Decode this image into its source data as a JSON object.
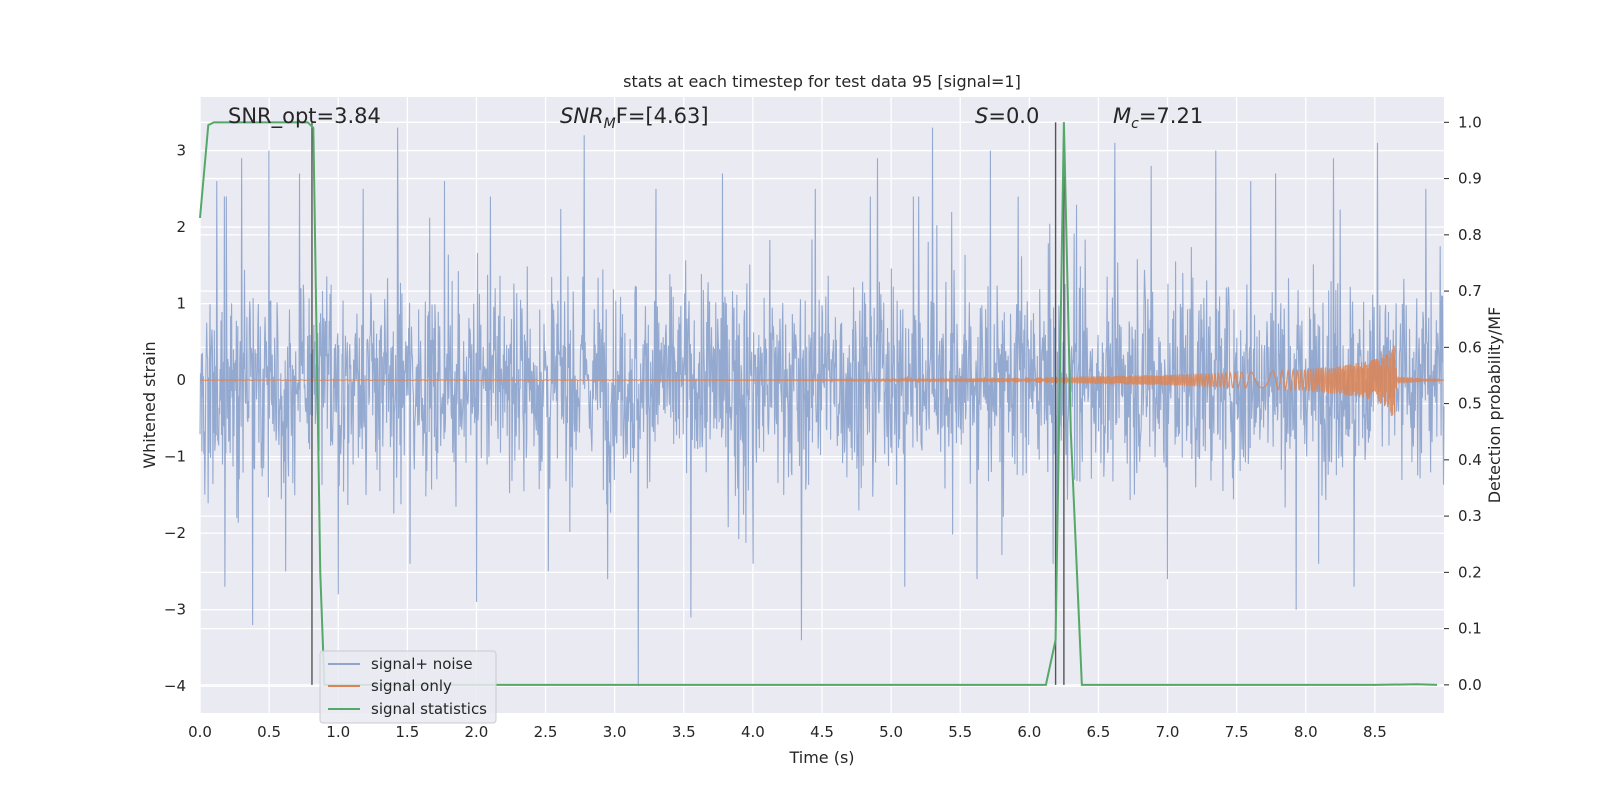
{
  "chart_data": {
    "type": "line",
    "title": "stats at each timestep for test data 95 [signal=1]",
    "xlabel": "Time (s)",
    "ylabel": "Whitened strain",
    "y2label": "Detection probability/MF",
    "xlim": [
      0.0,
      9.0
    ],
    "ylim": [
      -4.35,
      3.7
    ],
    "y2lim": [
      -0.05,
      1.045
    ],
    "x_ticks": [
      "0.0",
      "0.5",
      "1.0",
      "1.5",
      "2.0",
      "2.5",
      "3.0",
      "3.5",
      "4.0",
      "4.5",
      "5.0",
      "5.5",
      "6.0",
      "6.5",
      "7.0",
      "7.5",
      "8.0",
      "8.5"
    ],
    "y_ticks": [
      "3",
      "2",
      "1",
      "0",
      "−1",
      "−2",
      "−3",
      "−4"
    ],
    "y2_ticks": [
      "1.0",
      "0.9",
      "0.8",
      "0.7",
      "0.6",
      "0.5",
      "0.4",
      "0.3",
      "0.2",
      "0.1",
      "0.0"
    ],
    "grid": true,
    "legend_position": "lower-left",
    "annotations": [
      {
        "label": "SNR_opt=3.84"
      },
      {
        "prefix": "SNR",
        "sub": "M",
        "suffix": "F=[4.63]"
      },
      {
        "prefix": "S",
        "suffix": "=0.0"
      },
      {
        "prefix": "M",
        "sub": "c",
        "suffix": "=7.21"
      }
    ],
    "vertical_markers": [
      0.81,
      6.19,
      6.25
    ],
    "series": [
      {
        "name": "signal+ noise",
        "color": "#8fa5ce",
        "axis": "left",
        "style": "dense noise, approx. ±1.2 typical, peaks about ±3.3",
        "peaks": [
          [
            0.12,
            2.6
          ],
          [
            0.18,
            -2.7
          ],
          [
            0.3,
            2.9
          ],
          [
            0.38,
            -3.2
          ],
          [
            0.5,
            3.0
          ],
          [
            0.62,
            -2.5
          ],
          [
            0.72,
            2.7
          ],
          [
            1.0,
            -2.8
          ],
          [
            1.18,
            2.5
          ],
          [
            1.43,
            3.3
          ],
          [
            1.52,
            -2.4
          ],
          [
            1.77,
            2.6
          ],
          [
            2.0,
            -2.9
          ],
          [
            2.1,
            2.4
          ],
          [
            2.52,
            -2.5
          ],
          [
            2.78,
            3.2
          ],
          [
            2.95,
            -2.6
          ],
          [
            3.17,
            -4.0
          ],
          [
            3.3,
            2.5
          ],
          [
            3.55,
            -3.1
          ],
          [
            3.78,
            2.7
          ],
          [
            4.0,
            -2.4
          ],
          [
            4.35,
            -3.4
          ],
          [
            4.45,
            2.5
          ],
          [
            4.9,
            2.9
          ],
          [
            5.1,
            -2.7
          ],
          [
            5.2,
            2.4
          ],
          [
            5.3,
            3.3
          ],
          [
            5.62,
            -2.6
          ],
          [
            5.72,
            3.0
          ],
          [
            5.92,
            2.4
          ],
          [
            6.2,
            -2.5
          ],
          [
            6.62,
            3.1
          ],
          [
            6.88,
            2.8
          ],
          [
            7.0,
            -2.6
          ],
          [
            7.35,
            3.0
          ],
          [
            7.6,
            2.6
          ],
          [
            7.78,
            2.7
          ],
          [
            7.93,
            -3.0
          ],
          [
            8.2,
            2.9
          ],
          [
            8.35,
            -2.7
          ],
          [
            8.52,
            3.1
          ],
          [
            8.87,
            2.5
          ]
        ]
      },
      {
        "name": "signal only",
        "color": "#dd8452",
        "axis": "left",
        "style": "chirp: near zero, growing amplitude, merger near t=8.64",
        "envelope": [
          [
            0.0,
            0.003
          ],
          [
            4.0,
            0.005
          ],
          [
            5.0,
            0.01
          ],
          [
            6.0,
            0.035
          ],
          [
            7.0,
            0.07
          ],
          [
            7.5,
            0.1
          ],
          [
            8.0,
            0.14
          ],
          [
            8.3,
            0.2
          ],
          [
            8.5,
            0.27
          ],
          [
            8.6,
            0.38
          ],
          [
            8.64,
            0.5
          ],
          [
            8.66,
            0.05
          ],
          [
            9.0,
            0.0
          ]
        ]
      },
      {
        "name": "signal statistics",
        "color": "#55a868",
        "axis": "right",
        "x": [
          0.0,
          0.06,
          0.1,
          0.15,
          0.2,
          0.3,
          0.4,
          0.5,
          0.6,
          0.7,
          0.78,
          0.82,
          0.87,
          0.9,
          1.0,
          2.0,
          3.0,
          4.0,
          5.0,
          6.0,
          6.12,
          6.19,
          6.25,
          6.3,
          6.38,
          7.0,
          8.0,
          8.5,
          8.8,
          8.95
        ],
        "y": [
          0.83,
          0.995,
          1.0,
          1.0,
          1.0,
          1.0,
          1.0,
          1.0,
          1.0,
          1.0,
          1.0,
          0.99,
          0.2,
          0.0,
          0.0,
          0.0,
          0.0,
          0.0,
          0.0,
          0.0,
          0.0,
          0.08,
          1.0,
          0.45,
          0.0,
          0.0,
          0.0,
          0.0,
          0.001,
          0.0
        ]
      }
    ]
  }
}
